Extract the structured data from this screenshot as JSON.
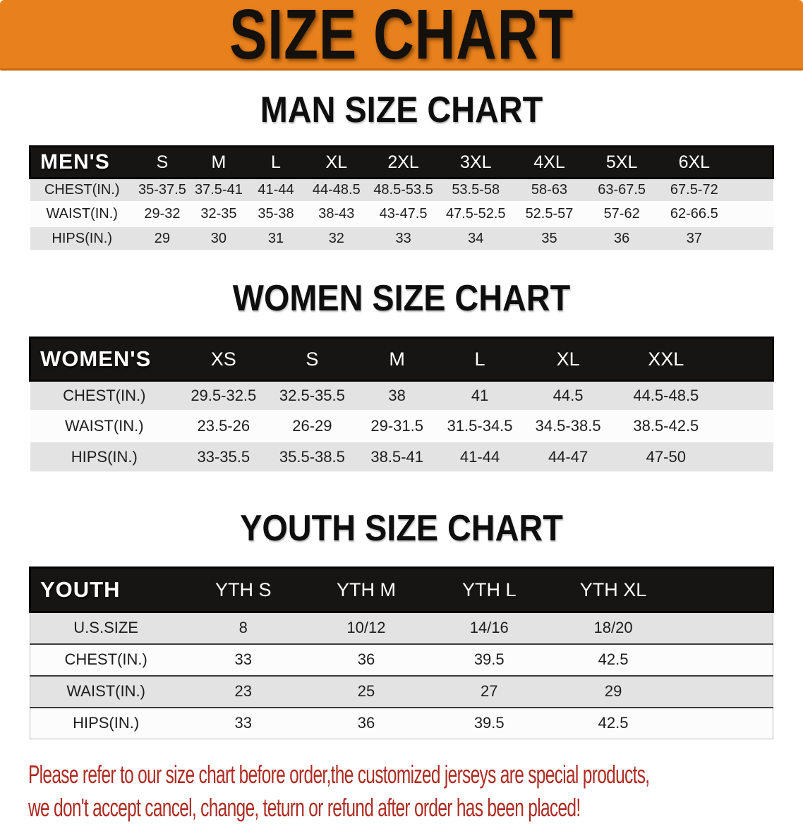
{
  "banner": {
    "title": "SIZE CHART",
    "bg_color": "#E8801C",
    "text_color": "#14100c"
  },
  "sections": [
    {
      "heading": "MAN SIZE CHART",
      "table": {
        "label": "MEN'S",
        "columns": [
          "S",
          "M",
          "L",
          "XL",
          "2XL",
          "3XL",
          "4XL",
          "5XL",
          "6XL"
        ],
        "rows": [
          {
            "label": "CHEST(IN.)",
            "values": [
              "35-37.5",
              "37.5-41",
              "41-44",
              "44-48.5",
              "48.5-53.5",
              "53.5-58",
              "58-63",
              "63-67.5",
              "67.5-72"
            ]
          },
          {
            "label": "WAIST(IN.)",
            "values": [
              "29-32",
              "32-35",
              "35-38",
              "38-43",
              "43-47.5",
              "47.5-52.5",
              "52.5-57",
              "57-62",
              "62-66.5"
            ]
          },
          {
            "label": "HIPS(IN.)",
            "values": [
              "29",
              "30",
              "31",
              "32",
              "33",
              "34",
              "35",
              "36",
              "37"
            ]
          }
        ]
      }
    },
    {
      "heading": "WOMEN SIZE CHART",
      "table": {
        "label": "WOMEN'S",
        "columns": [
          "XS",
          "S",
          "M",
          "L",
          "XL",
          "XXL"
        ],
        "rows": [
          {
            "label": "CHEST(IN.)",
            "values": [
              "29.5-32.5",
              "32.5-35.5",
              "38",
              "41",
              "44.5",
              "44.5-48.5"
            ]
          },
          {
            "label": "WAIST(IN.)",
            "values": [
              "23.5-26",
              "26-29",
              "29-31.5",
              "31.5-34.5",
              "34.5-38.5",
              "38.5-42.5"
            ]
          },
          {
            "label": "HIPS(IN.)",
            "values": [
              "33-35.5",
              "35.5-38.5",
              "38.5-41",
              "41-44",
              "44-47",
              "47-50"
            ]
          }
        ]
      }
    },
    {
      "heading": "YOUTH SIZE CHART",
      "table": {
        "label": "YOUTH",
        "columns": [
          "YTH S",
          "YTH M",
          "YTH L",
          "YTH XL"
        ],
        "rows": [
          {
            "label": "U.S.SIZE",
            "values": [
              "8",
              "10/12",
              "14/16",
              "18/20"
            ]
          },
          {
            "label": "CHEST(IN.)",
            "values": [
              "33",
              "36",
              "39.5",
              "42.5"
            ]
          },
          {
            "label": "WAIST(IN.)",
            "values": [
              "23",
              "25",
              "27",
              "29"
            ]
          },
          {
            "label": "HIPS(IN.)",
            "values": [
              "33",
              "36",
              "39.5",
              "42.5"
            ]
          }
        ]
      }
    }
  ],
  "disclaimer": {
    "line1": "Please refer to our size chart before order,the customized jerseys are special products,",
    "line2": "we don't accept cancel, change, teturn or refund after order has been placed!",
    "color": "#AE2B23"
  },
  "colors": {
    "header_band": "#171513",
    "stripe_gray": "#e3e3e3",
    "stripe_white": "#fcfcfc"
  }
}
